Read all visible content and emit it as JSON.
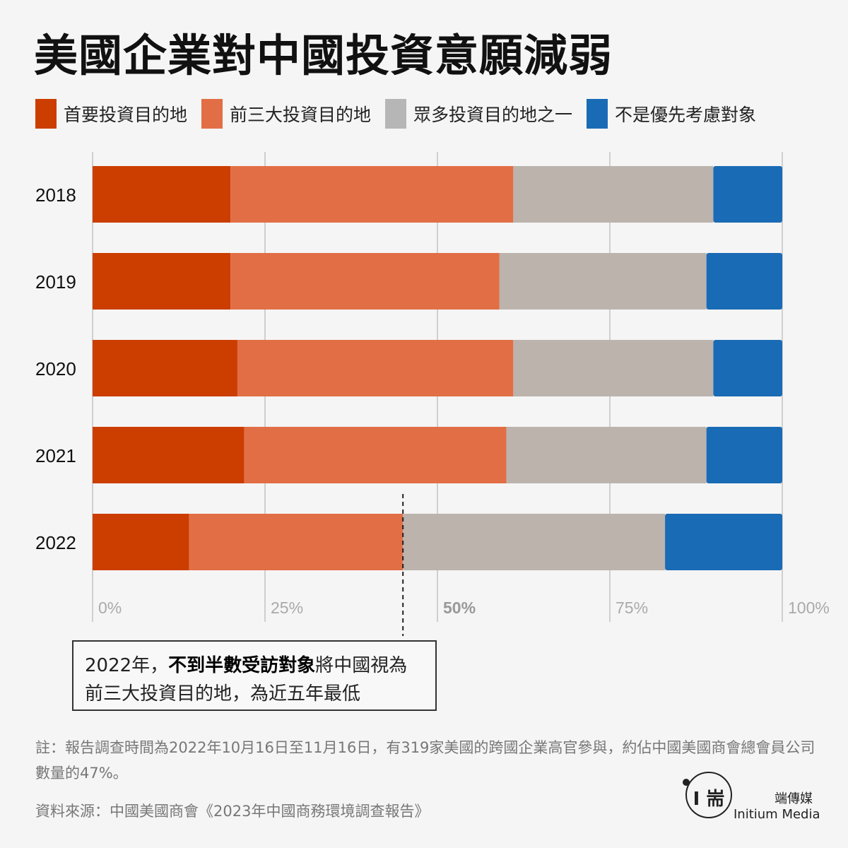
{
  "title": "美國企業對中國投資意願減弱",
  "legend": [
    {
      "label": "首要投資目的地",
      "color": "#cc3d00"
    },
    {
      "label": "前三大投資目的地",
      "color": "#e26e45"
    },
    {
      "label": "眾多投資目的地之一",
      "color": "#b6b6b6"
    },
    {
      "label": "不是優先考慮對象",
      "color": "#1a6bb5"
    }
  ],
  "chart_data": {
    "type": "bar",
    "orientation": "horizontal",
    "stacked": true,
    "categories": [
      "2018",
      "2019",
      "2020",
      "2021",
      "2022"
    ],
    "series": [
      {
        "name": "首要投資目的地",
        "color": "#cc3d00",
        "values": [
          20,
          20,
          21,
          22,
          14
        ]
      },
      {
        "name": "前三大投資目的地",
        "color": "#e26e45",
        "values": [
          41,
          39,
          40,
          38,
          31
        ]
      },
      {
        "name": "眾多投資目的地之一",
        "color": "#bcb3ad",
        "values": [
          29,
          30,
          29,
          29,
          38
        ]
      },
      {
        "name": "不是優先考慮對象",
        "color": "#1a6bb5",
        "values": [
          10,
          11,
          10,
          11,
          17
        ]
      }
    ],
    "xlim": [
      0,
      100
    ],
    "ticks": [
      "0%",
      "25%",
      "50%",
      "75%",
      "100%"
    ],
    "highlight_tick": "50%",
    "marker_value": 45,
    "marker_category": "2022"
  },
  "annotation": {
    "prefix": "2022年，",
    "bold": "不到半數受訪對象",
    "suffix": "將中國視為",
    "line2": "前三大投資目的地，為近五年最低"
  },
  "note": "註：報告調查時間為2022年10月16日至11月16日，有319家美國的跨國企業高官參與，約佔中國美國商會總會員公司數量的47%。",
  "source": "資料來源：中國美國商會《2023年中國商務環境調查報告》",
  "brand": {
    "zh": "端傳媒",
    "en": "Initium Media",
    "logo_glyph": "I 耑"
  }
}
